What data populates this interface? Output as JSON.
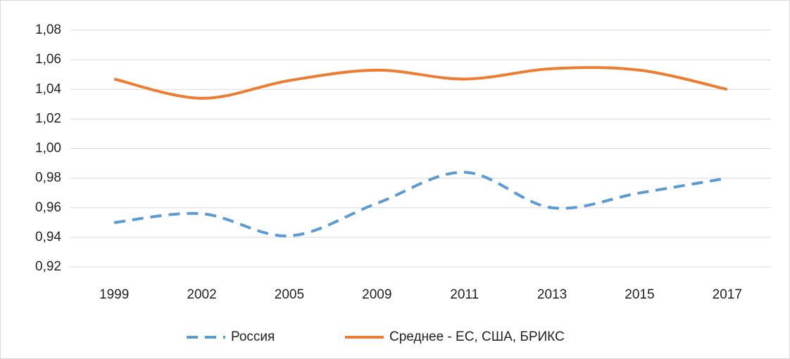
{
  "chart_data": {
    "type": "line",
    "categories": [
      "1999",
      "2002",
      "2005",
      "2009",
      "2011",
      "2013",
      "2015",
      "2017"
    ],
    "series": [
      {
        "name": "Россия",
        "color": "#5b9bd5",
        "dashed": true,
        "values": [
          0.95,
          0.956,
          0.941,
          0.963,
          0.984,
          0.96,
          0.97,
          0.98
        ]
      },
      {
        "name": "Среднее - ЕС, США, БРИКС",
        "color": "#ed7d31",
        "dashed": false,
        "values": [
          1.047,
          1.034,
          1.046,
          1.053,
          1.047,
          1.054,
          1.053,
          1.04
        ]
      }
    ],
    "ylim": [
      0.92,
      1.08
    ],
    "yticks": [
      {
        "value": 0.92,
        "label": "0,92"
      },
      {
        "value": 0.94,
        "label": "0,94"
      },
      {
        "value": 0.96,
        "label": "0,96"
      },
      {
        "value": 0.98,
        "label": "0,98"
      },
      {
        "value": 1.0,
        "label": "1,00"
      },
      {
        "value": 1.02,
        "label": "1,02"
      },
      {
        "value": 1.04,
        "label": "1,04"
      },
      {
        "value": 1.06,
        "label": "1,06"
      },
      {
        "value": 1.08,
        "label": "1,08"
      }
    ],
    "grid": true,
    "smooth": true,
    "legend": "bottom"
  }
}
